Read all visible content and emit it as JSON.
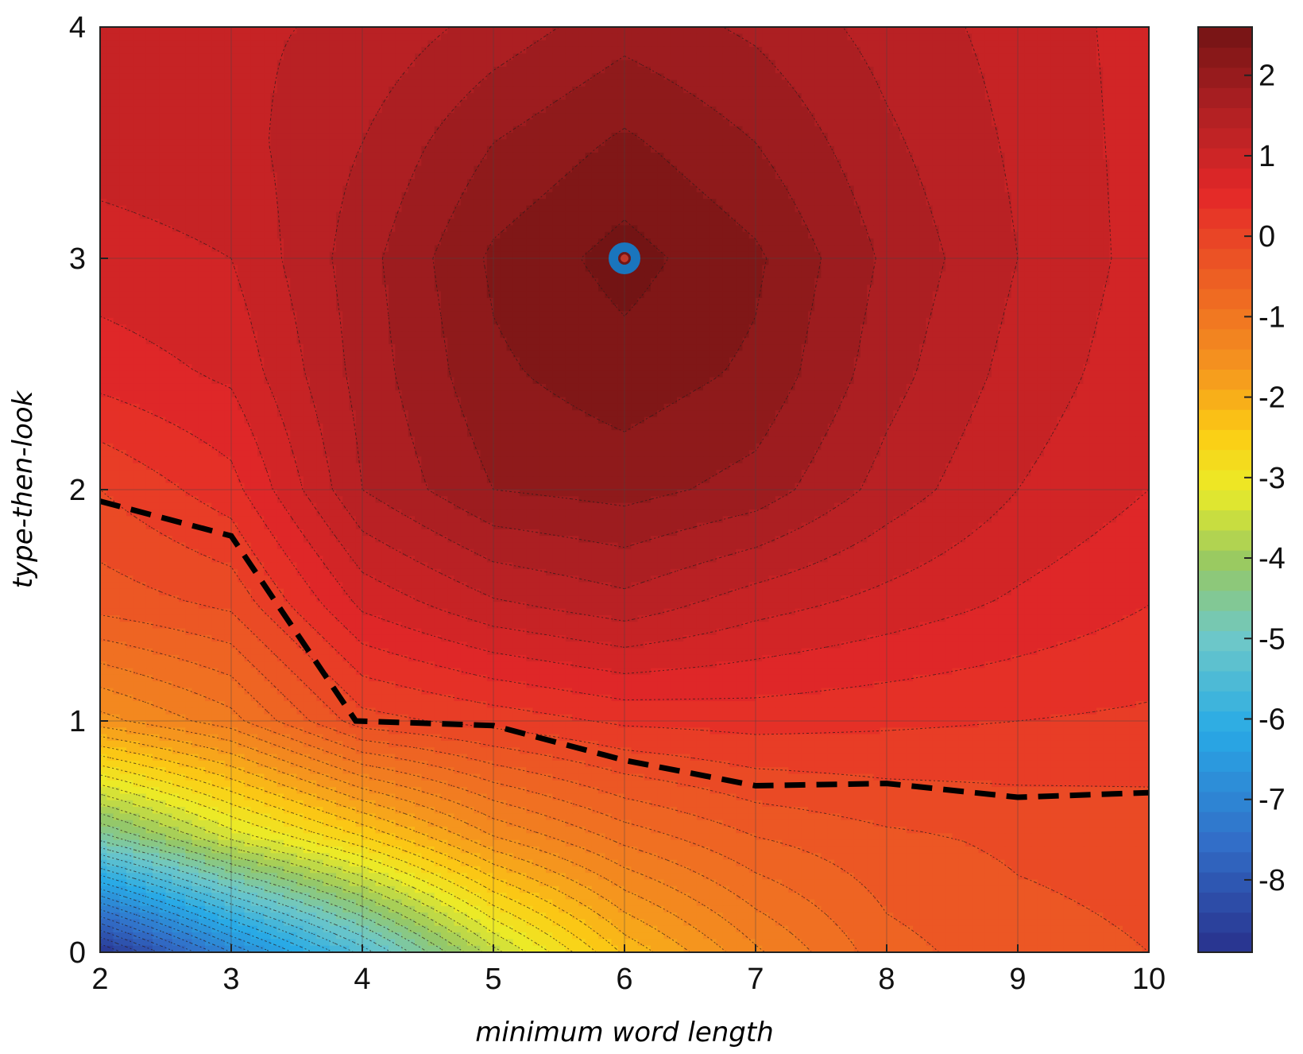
{
  "chart_data": {
    "type": "heatmap",
    "subtype": "filled-contour",
    "xlabel": "minimum word length",
    "ylabel": "type-then-look",
    "xlim": [
      2,
      10
    ],
    "ylim": [
      0,
      4
    ],
    "xticks": [
      "2",
      "3",
      "4",
      "5",
      "6",
      "7",
      "8",
      "9",
      "10"
    ],
    "yticks": [
      "0",
      "1",
      "2",
      "3",
      "4"
    ],
    "grid": true,
    "colormap": "parula-like (blue to yellow to red)",
    "colorbar": {
      "range": [
        -8.9,
        2.6
      ],
      "ticks": [
        "2",
        "1",
        "0",
        "-1",
        "-2",
        "-3",
        "-4",
        "-5",
        "-6",
        "-7",
        "-8"
      ],
      "placement": "right"
    },
    "x": [
      2,
      3,
      4,
      5,
      6,
      7,
      8,
      9,
      10
    ],
    "y": [
      0,
      0.5,
      1,
      1.5,
      2,
      2.5,
      3,
      3.5,
      4
    ],
    "z": [
      [
        -8.8,
        -7.0,
        -5.4,
        -3.6,
        -2.2,
        -1.3,
        -0.6,
        -0.35,
        -0.25
      ],
      [
        -4.6,
        -3.4,
        -2.5,
        -1.5,
        -0.9,
        -0.5,
        -0.3,
        -0.2,
        -0.15
      ],
      [
        -1.6,
        -1.1,
        -0.1,
        0.1,
        0.3,
        0.35,
        0.3,
        0.25,
        0.2
      ],
      [
        -0.4,
        -0.2,
        0.8,
        1.2,
        1.4,
        1.1,
        0.9,
        0.7,
        0.5
      ],
      [
        0.0,
        0.4,
        1.5,
        2.0,
        2.1,
        1.9,
        1.4,
        1.0,
        0.75
      ],
      [
        0.6,
        0.8,
        1.6,
        2.2,
        2.4,
        2.2,
        1.6,
        1.15,
        0.85
      ],
      [
        0.9,
        1.0,
        1.65,
        2.3,
        2.6,
        2.3,
        1.7,
        1.25,
        0.9
      ],
      [
        1.1,
        1.15,
        1.5,
        2.0,
        2.3,
        2.0,
        1.55,
        1.2,
        0.9
      ],
      [
        1.2,
        1.2,
        1.3,
        1.6,
        1.9,
        1.7,
        1.4,
        1.15,
        0.9
      ]
    ],
    "series": [
      {
        "name": "",
        "type": "line",
        "style": "dashed",
        "color": "#000000",
        "x": [
          2,
          3,
          3.95,
          5,
          6,
          7,
          8,
          9,
          10
        ],
        "y": [
          1.95,
          1.8,
          1.0,
          0.98,
          0.83,
          0.72,
          0.73,
          0.67,
          0.69
        ]
      }
    ],
    "annotations": [
      {
        "type": "marker",
        "shape": "ring",
        "color": "#1a75bd",
        "center_color": "#c0392b",
        "x": 6,
        "y": 3
      }
    ]
  }
}
